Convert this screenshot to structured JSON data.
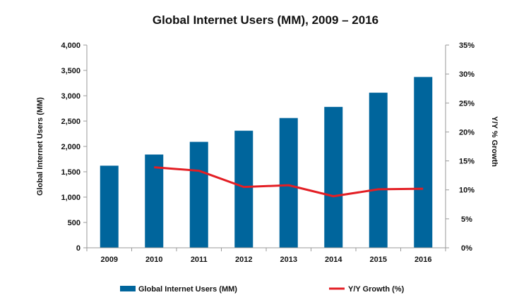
{
  "colors": {
    "bar": "#00659C",
    "line": "#E31E24",
    "axis": "#9A9A9A",
    "text": "#111111"
  },
  "chart_data": {
    "type": "bar",
    "title": "Global Internet Users (MM), 2009 – 2016",
    "categories": [
      "2009",
      "2010",
      "2011",
      "2012",
      "2013",
      "2014",
      "2015",
      "2016"
    ],
    "ylabel": "Global Internet Users (MM)",
    "y2label": "Y/Y % Growth",
    "ylim": [
      0,
      4000
    ],
    "y2lim": [
      0,
      0.35
    ],
    "yticks": [
      "0",
      "500",
      "1,000",
      "1,500",
      "2,000",
      "2,500",
      "3,000",
      "3,500",
      "4,000"
    ],
    "y2ticks": [
      "0%",
      "5%",
      "10%",
      "15%",
      "20%",
      "25%",
      "30%",
      "35%"
    ],
    "grid": false,
    "legend_position": "bottom",
    "series": [
      {
        "name": "Global Internet Users (MM)",
        "type": "bar",
        "axis": "left",
        "values": [
          1620,
          1840,
          2090,
          2310,
          2560,
          2780,
          3060,
          3370
        ]
      },
      {
        "name": "Y/Y Growth (%)",
        "type": "line",
        "axis": "right",
        "values": [
          null,
          0.139,
          0.133,
          0.105,
          0.108,
          0.089,
          0.101,
          0.102
        ]
      }
    ]
  }
}
